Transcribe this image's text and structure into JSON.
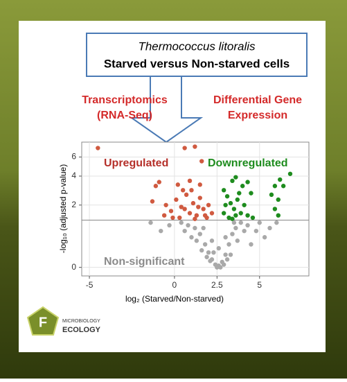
{
  "header": {
    "species": "Thermococcus litoralis",
    "comparison": "Starved versus  Non-starved cells",
    "left_1": "Transcriptomics",
    "left_2": "(RNA-Seq)",
    "right_1": "Differential Gene",
    "right_2": "Expression"
  },
  "logo": {
    "line1": "MICROBIOLOGY",
    "line2": "ECOLOGY",
    "mark": "F"
  },
  "chart_data": {
    "type": "scatter",
    "x_label": "log₂ (Starved/Non-starved)",
    "y_label": "-log₁₀ (adjusted p-value)",
    "y_scale": "log1p",
    "grid": true,
    "xlim": [
      -5.45,
      7.9
    ],
    "ylim": [
      -0.14,
      8.1
    ],
    "xticks": [
      -5,
      0,
      2.5,
      5
    ],
    "yticks": [
      0,
      2,
      4,
      6
    ],
    "hline": 1.3,
    "series": [
      {
        "name": "Upregulated",
        "color": "#d05a40",
        "label_color": "#b5302a",
        "x": [
          -4.5,
          0.6,
          1.2,
          1.6,
          -0.9,
          -1.1,
          -1.3,
          0.2,
          0.9,
          1.5,
          -0.5,
          -0.2,
          0.1,
          0.4,
          0.7,
          0.9,
          1.1,
          1.3,
          1.5,
          1.7,
          1.9,
          2.0,
          -0.6,
          0.3,
          0.6,
          1.0,
          1.4,
          1.8,
          0.5,
          -0.1,
          2.2,
          1.2
        ],
        "values": [
          7.2,
          7.2,
          7.4,
          5.5,
          3.5,
          3.2,
          2.2,
          3.3,
          3.6,
          3.3,
          2.0,
          1.7,
          2.3,
          1.9,
          2.6,
          1.6,
          2.1,
          1.5,
          2.4,
          1.8,
          1.4,
          2.0,
          1.5,
          1.4,
          1.8,
          2.9,
          1.9,
          1.5,
          2.9,
          1.4,
          1.6,
          1.35
        ]
      },
      {
        "name": "Downregulated",
        "color": "#1e8c1e",
        "label_color": "#1e8c1e",
        "x": [
          6.8,
          6.2,
          5.9,
          6.4,
          5.7,
          6.1,
          5.9,
          6.1,
          3.4,
          3.6,
          4.0,
          4.3,
          2.9,
          3.1,
          3.3,
          3.5,
          3.7,
          3.9,
          4.1,
          4.3,
          2.9,
          3.2,
          3.6,
          4.5,
          3.0,
          3.8,
          4.6,
          3.4
        ],
        "values": [
          4.2,
          3.7,
          3.2,
          3.2,
          2.6,
          2.3,
          1.8,
          1.5,
          3.6,
          3.9,
          3.2,
          3.5,
          2.9,
          2.5,
          2.1,
          1.8,
          2.3,
          1.6,
          2.0,
          1.5,
          1.6,
          1.4,
          1.5,
          2.7,
          2.0,
          2.7,
          1.4,
          1.35
        ]
      },
      {
        "name": "Non-significant",
        "color": "#a9a9a9",
        "label_color": "#8a8a8a",
        "x": [
          0.4,
          0.8,
          1.2,
          1.5,
          1.8,
          2.0,
          2.2,
          2.4,
          2.6,
          2.8,
          3.0,
          3.2,
          3.4,
          3.6,
          3.9,
          4.3,
          4.8,
          5.3,
          5.6,
          6.0,
          -0.3,
          -0.8,
          -1.4,
          1.0,
          1.6,
          2.1,
          2.5,
          2.7,
          2.9,
          3.3,
          3.7,
          4.1,
          1.3,
          1.9,
          2.3,
          3.1,
          4.5,
          5.0,
          0.6,
          2.6,
          2.2,
          3.0,
          1.7,
          3.5
        ],
        "values": [
          1.2,
          1.1,
          1.0,
          0.8,
          0.5,
          0.3,
          0.15,
          0.05,
          0.03,
          0.1,
          0.25,
          0.5,
          0.8,
          1.0,
          1.2,
          1.1,
          0.9,
          0.7,
          1.0,
          1.2,
          1.1,
          0.9,
          1.2,
          0.7,
          0.35,
          0.12,
          0.0,
          0.0,
          0.05,
          0.25,
          0.6,
          0.9,
          0.6,
          0.2,
          0.3,
          0.15,
          0.5,
          1.2,
          0.9,
          0.4,
          0.6,
          0.7,
          1.0,
          1.2
        ]
      }
    ]
  }
}
